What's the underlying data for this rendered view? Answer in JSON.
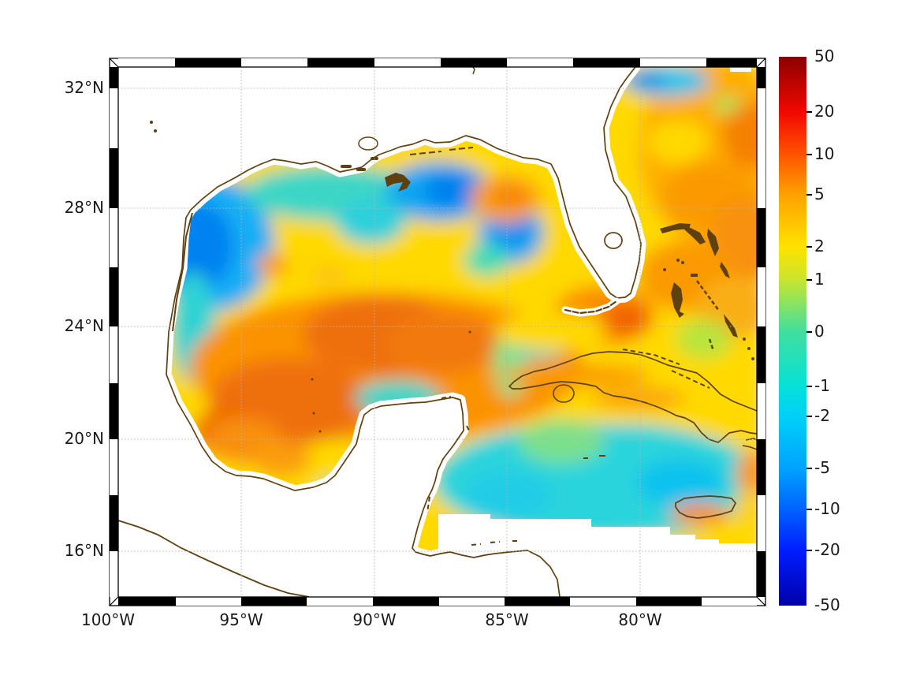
{
  "figure": {
    "kind": "geographic heatmap",
    "region": "Gulf of Mexico, Florida, Cuba and northwestern Caribbean",
    "background": "#ffffff"
  },
  "axes": {
    "x_ticks": [
      "100°W",
      "95°W",
      "90°W",
      "85°W",
      "80°W"
    ],
    "y_ticks": [
      "32°N",
      "28°N",
      "24°N",
      "20°N",
      "16°N"
    ]
  },
  "colorbar": {
    "tick_labels": [
      "50",
      "20",
      "10",
      "5",
      "2",
      "1",
      "0",
      "-1",
      "-2",
      "-5",
      "-10",
      "-20",
      "-50"
    ],
    "stops": [
      {
        "value": 50,
        "color": "#8b0000"
      },
      {
        "value": 20,
        "color": "#f10800"
      },
      {
        "value": 10,
        "color": "#ff5400"
      },
      {
        "value": 5,
        "color": "#ffa200"
      },
      {
        "value": 2,
        "color": "#ffe200"
      },
      {
        "value": 1,
        "color": "#c8e52e"
      },
      {
        "value": 0,
        "color": "#3fdf9f"
      },
      {
        "value": -1,
        "color": "#06e0d8"
      },
      {
        "value": -2,
        "color": "#00d0f8"
      },
      {
        "value": -5,
        "color": "#00a2ff"
      },
      {
        "value": -10,
        "color": "#0062ff"
      },
      {
        "value": -20,
        "color": "#001dff"
      },
      {
        "value": -50,
        "color": "#0000a8"
      }
    ]
  },
  "map": {
    "coastline_color": "#5f4110",
    "grid_color": "#b3b3b3",
    "land_color": "#ffffff"
  },
  "chart_data": {
    "type": "heatmap",
    "title": "",
    "xlabel": "",
    "ylabel": "",
    "x_ticks": [
      "100°W",
      "95°W",
      "90°W",
      "85°W",
      "80°W"
    ],
    "y_ticks": [
      "32°N",
      "28°N",
      "24°N",
      "20°N",
      "16°N"
    ],
    "lon_range": [
      -100.4,
      -75.6
    ],
    "lat_range": [
      14.4,
      32.7
    ],
    "grid": "dotted graticule, 5 deg lon x 4 deg lat labels, 2-2.5 deg frame checkers",
    "legend_position": "right colorbar",
    "colorbar_scale": {
      "type": "symlog",
      "range": [
        -50,
        50
      ],
      "ticks": [
        50,
        20,
        10,
        5,
        2,
        1,
        0,
        -1,
        -2,
        -5,
        -10,
        -20,
        -50
      ]
    },
    "lon_samples": [
      -97,
      -94,
      -91,
      -88,
      -85,
      -82,
      -79,
      -76
    ],
    "lat_samples": [
      31,
      29,
      27,
      25,
      23,
      21,
      19,
      17
    ],
    "values_estimated": [
      [
        null,
        null,
        null,
        null,
        null,
        null,
        0,
        5
      ],
      [
        null,
        null,
        -1,
        -4,
        2,
        null,
        2,
        5
      ],
      [
        -3,
        -1,
        1,
        0,
        -2,
        null,
        4,
        4
      ],
      [
        0,
        2,
        4,
        4,
        1,
        2,
        4,
        3
      ],
      [
        null,
        4,
        4,
        4,
        0,
        3,
        4,
        2
      ],
      [
        null,
        null,
        -1,
        -1,
        0,
        0,
        2,
        -1
      ],
      [
        null,
        null,
        null,
        null,
        -1,
        -1,
        -2,
        -1
      ],
      [
        null,
        null,
        null,
        null,
        null,
        null,
        null,
        -1
      ]
    ],
    "features": [
      {
        "name": "warm anticyclonic band across central Gulf",
        "approx_value": "+2 to +8"
      },
      {
        "name": "cold anomaly northern Gulf off Mississippi delta",
        "approx_value": "-3 to -6"
      },
      {
        "name": "cold anomaly western Gulf / Texas shelf",
        "approx_value": "-3 to -6"
      },
      {
        "name": "cold anomaly west Florida shelf",
        "approx_value": "-2 to -4"
      },
      {
        "name": "warm anomalies NW Atlantic and Florida Straits",
        "approx_value": "+3 to +8"
      },
      {
        "name": "cool band northwestern Caribbean south of Cuba",
        "approx_value": "-1 to -3"
      },
      {
        "name": "warm spot south of Jamaica",
        "approx_value": "+2 to +4"
      },
      {
        "name": "no-data white region south of ~17.5N and over land",
        "approx_value": null
      }
    ]
  }
}
